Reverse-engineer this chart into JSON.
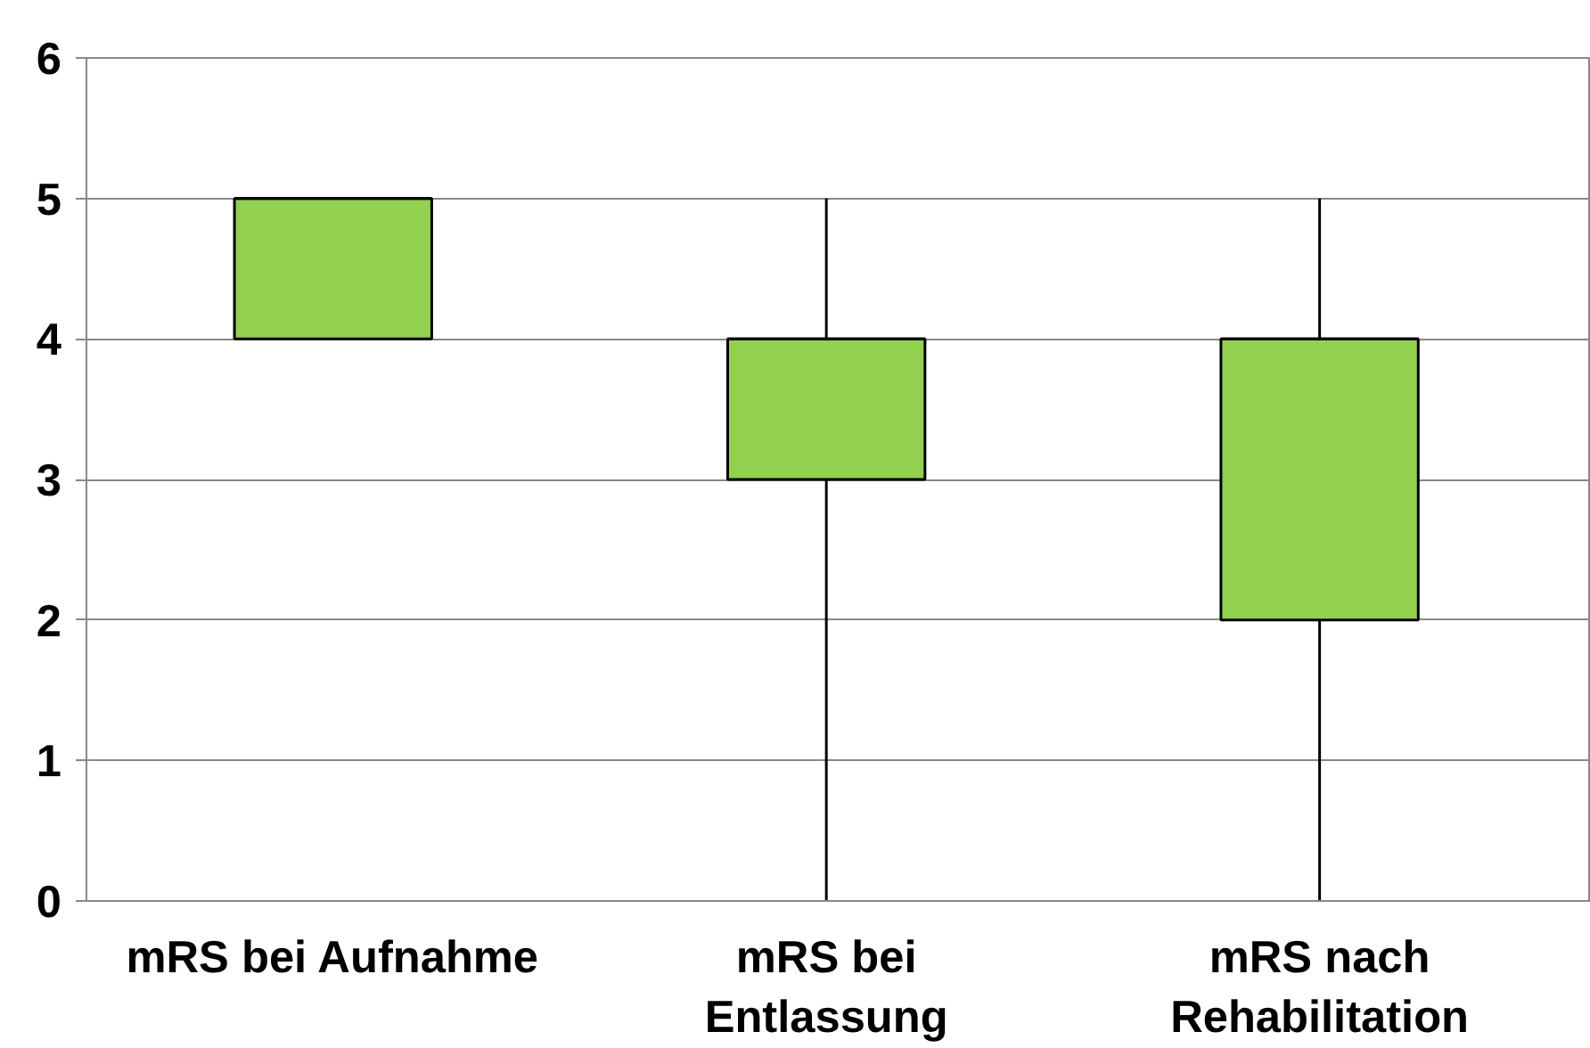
{
  "chart_data": {
    "type": "box",
    "categories": [
      "mRS bei Aufnahme",
      "mRS bei\nEntlassung",
      "mRS nach\nRehabilitation"
    ],
    "boxes": [
      {
        "low": 4,
        "q1": 4,
        "median": 5,
        "q3": 5,
        "high": 5
      },
      {
        "low": 0,
        "q1": 3,
        "median": 4,
        "q3": 4,
        "high": 5
      },
      {
        "low": 0,
        "q1": 2,
        "median": 4,
        "q3": 4,
        "high": 5
      }
    ],
    "color": "#92d050",
    "ylim": [
      0,
      6
    ],
    "yticks": [
      0,
      1,
      2,
      3,
      4,
      5,
      6
    ],
    "grid": "y"
  }
}
